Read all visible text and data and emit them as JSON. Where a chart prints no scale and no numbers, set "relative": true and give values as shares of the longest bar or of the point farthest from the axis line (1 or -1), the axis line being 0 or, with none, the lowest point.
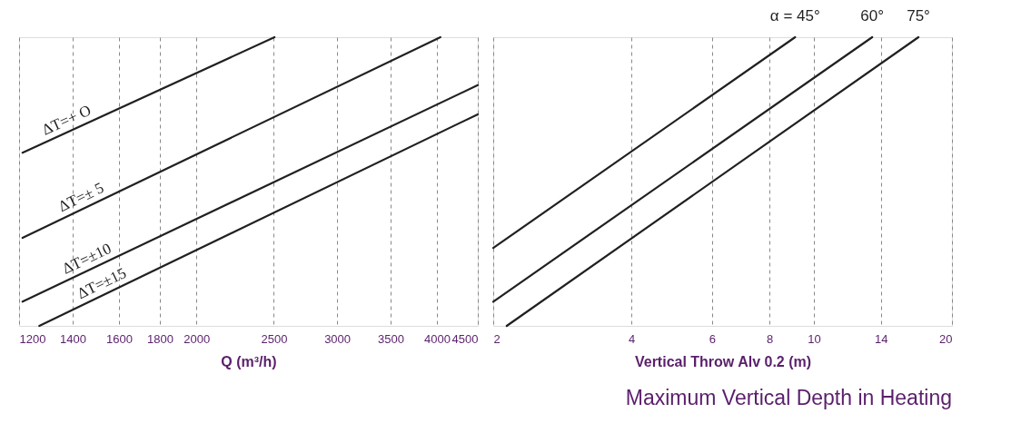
{
  "chart_data": [
    {
      "type": "line",
      "relative": true,
      "log": "x",
      "grid": "x",
      "tick_labels": "x",
      "xlabel": "Q (m³/h)",
      "xlim": [
        1200,
        4500
      ],
      "xticks": [
        1200,
        1400,
        1600,
        1800,
        2000,
        2500,
        3000,
        3500,
        4000,
        4500
      ],
      "series": [
        {
          "name": "ΔT=+ O",
          "color": "#231f20",
          "x": [
            1212,
            2505
          ],
          "values": [
            0.6,
            1
          ]
        },
        {
          "name": "ΔT=± 5",
          "color": "#231f20",
          "x": [
            1212,
            4040
          ],
          "values": [
            0.305,
            1
          ]
        },
        {
          "name": "ΔT=±10",
          "color": "#231f20",
          "x": [
            1212,
            4500
          ],
          "values": [
            0.084,
            0.834
          ]
        },
        {
          "name": "ΔT=±15",
          "color": "#231f20",
          "x": [
            1272,
            4500
          ],
          "values": [
            0,
            0.733
          ]
        }
      ]
    },
    {
      "type": "line",
      "relative": true,
      "log": "x",
      "grid": "x",
      "tick_labels": "x",
      "xlabel": "Vertical Throw Alv 0.2 (m)",
      "xlim": [
        2,
        20
      ],
      "xticks": [
        2,
        4,
        6,
        8,
        10,
        14,
        20
      ],
      "annotations": [
        "Maximum Vertical Depth in Heating"
      ],
      "series": [
        {
          "name": "α = 45°",
          "color": "#231f20",
          "x": [
            2,
            9.1
          ],
          "values": [
            0.27,
            1
          ]
        },
        {
          "name": "60°",
          "color": "#231f20",
          "x": [
            2,
            13.4
          ],
          "values": [
            0.084,
            1
          ]
        },
        {
          "name": "75°",
          "color": "#231f20",
          "x": [
            2.14,
            16.9
          ],
          "values": [
            0,
            1
          ]
        }
      ]
    }
  ]
}
